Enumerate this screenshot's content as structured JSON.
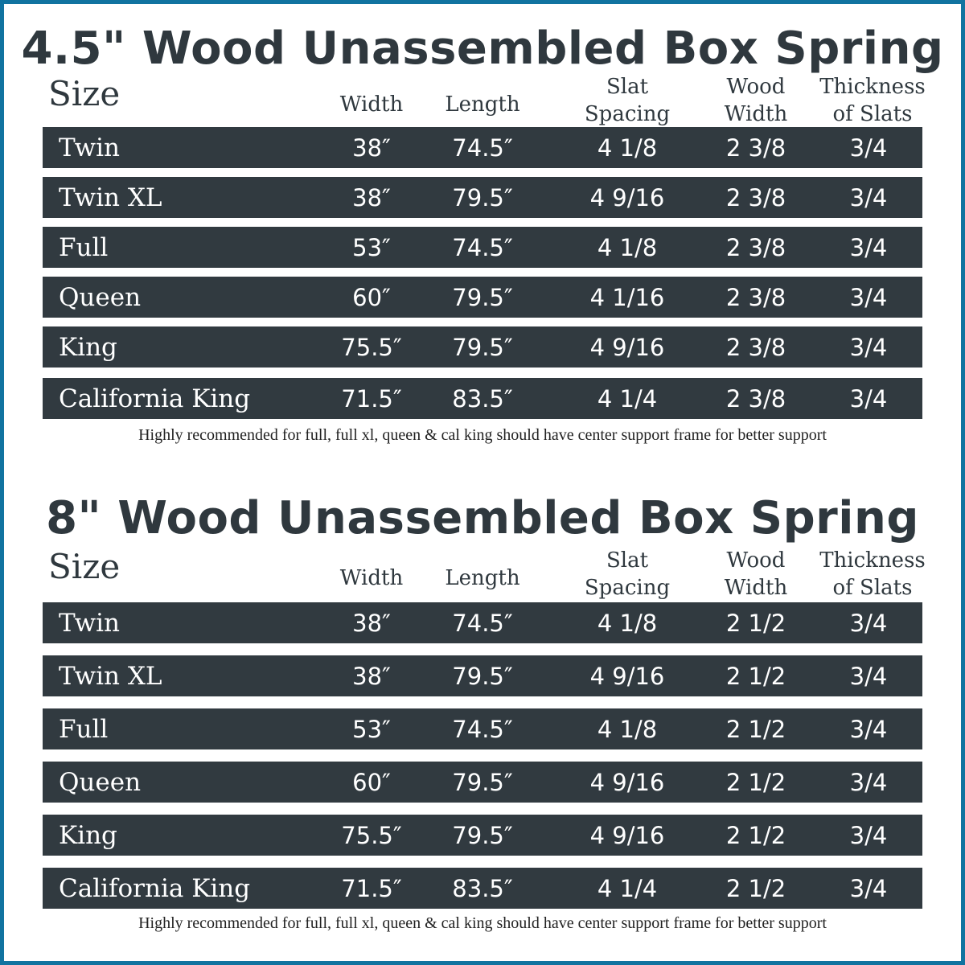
{
  "colors": {
    "border": "#1173a0",
    "row": "#313a40",
    "text": "#2f383e"
  },
  "tables": [
    {
      "title": "4.5\" Wood Unassembled Box Spring",
      "headers": {
        "size": "Size",
        "width": "Width",
        "length": "Length",
        "slat1": "Slat",
        "slat2": "Spacing",
        "wood1": "Wood",
        "wood2": "Width",
        "thick1": "Thickness",
        "thick2": "of Slats"
      },
      "rows": [
        [
          "Twin",
          "38″",
          "74.5″",
          "4 1/8",
          "2 3/8",
          "3/4"
        ],
        [
          "Twin XL",
          "38″",
          "79.5″",
          "4 9/16",
          "2 3/8",
          "3/4"
        ],
        [
          "Full",
          "53″",
          "74.5″",
          "4 1/8",
          "2 3/8",
          "3/4"
        ],
        [
          "Queen",
          "60″",
          "79.5″",
          "4 1/16",
          "2 3/8",
          "3/4"
        ],
        [
          "King",
          "75.5″",
          "79.5″",
          "4 9/16",
          "2 3/8",
          "3/4"
        ],
        [
          "California King",
          "71.5″",
          "83.5″",
          "4 1/4",
          "2 3/8",
          "3/4"
        ]
      ],
      "note": "Highly recommended for full, full xl, queen & cal king should have center support frame  for better support"
    },
    {
      "title": "8\" Wood Unassembled Box Spring",
      "headers": {
        "size": "Size",
        "width": "Width",
        "length": "Length",
        "slat1": "Slat",
        "slat2": "Spacing",
        "wood1": "Wood",
        "wood2": "Width",
        "thick1": "Thickness",
        "thick2": "of Slats"
      },
      "rows": [
        [
          "Twin",
          "38″",
          "74.5″",
          "4 1/8",
          "2 1/2",
          "3/4"
        ],
        [
          "Twin XL",
          "38″",
          "79.5″",
          "4 9/16",
          "2 1/2",
          "3/4"
        ],
        [
          "Full",
          "53″",
          "74.5″",
          "4 1/8",
          "2 1/2",
          "3/4"
        ],
        [
          "Queen",
          "60″",
          "79.5″",
          "4 9/16",
          "2 1/2",
          "3/4"
        ],
        [
          "King",
          "75.5″",
          "79.5″",
          "4 9/16",
          "2 1/2",
          "3/4"
        ],
        [
          "California King",
          "71.5″",
          "83.5″",
          "4 1/4",
          "2 1/2",
          "3/4"
        ]
      ],
      "note": "Highly recommended for full, full xl, queen & cal king should have center support frame  for better support"
    }
  ]
}
